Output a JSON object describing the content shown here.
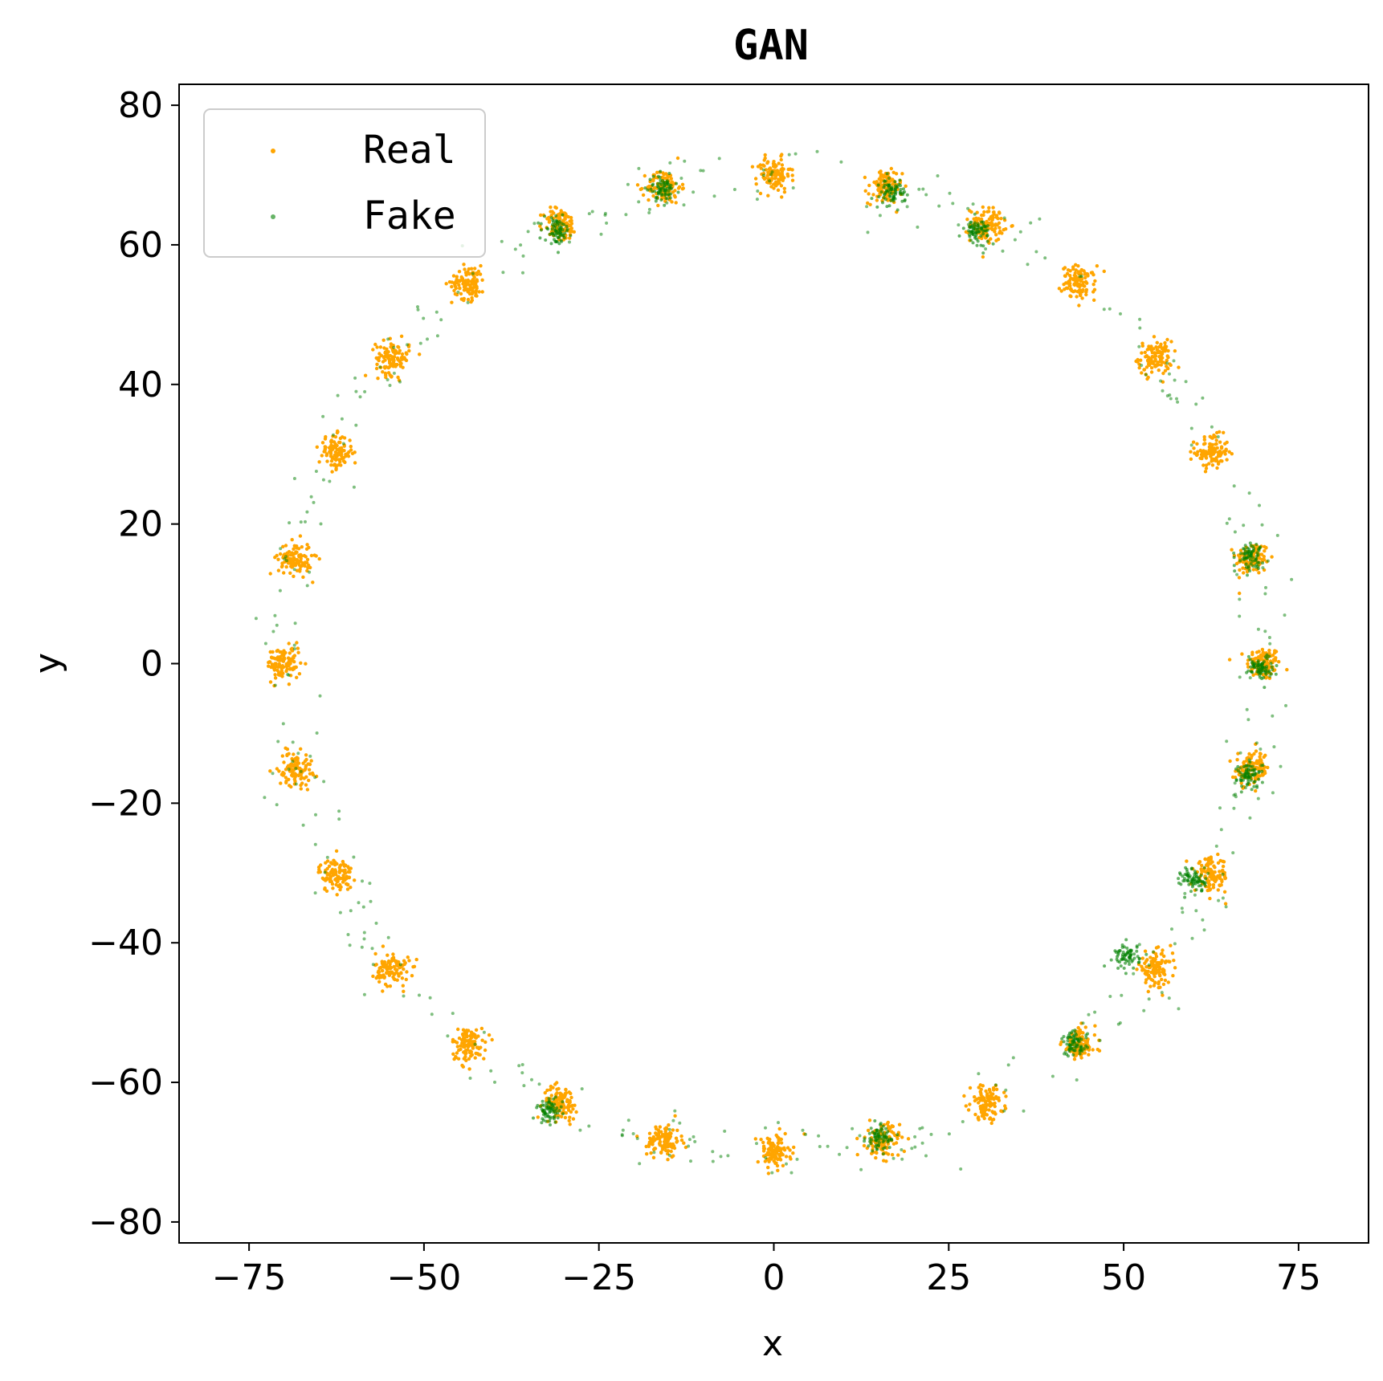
{
  "chart_data": {
    "type": "scatter",
    "title": "GAN",
    "xlabel": "x",
    "ylabel": "y",
    "xlim": [
      -85,
      85
    ],
    "ylim": [
      -83,
      83
    ],
    "xticks": [
      -75,
      -50,
      -25,
      0,
      25,
      50,
      75
    ],
    "yticks": [
      -80,
      -60,
      -40,
      -20,
      0,
      20,
      40,
      60,
      80
    ],
    "xtick_labels": [
      "−75",
      "−50",
      "−25",
      "0",
      "25",
      "50",
      "75"
    ],
    "ytick_labels": [
      "−80",
      "−60",
      "−40",
      "−20",
      "0",
      "20",
      "40",
      "60",
      "80"
    ],
    "grid": false,
    "legend_position": "upper-left",
    "series": [
      {
        "name": "Real",
        "color": "#FFA500",
        "cluster_centers": [
          [
            70,
            0
          ],
          [
            68.4,
            15.1
          ],
          [
            62.6,
            30.3
          ],
          [
            54.5,
            43.8
          ],
          [
            43.6,
            54.6
          ],
          [
            30.5,
            62.9
          ],
          [
            15.9,
            68.3
          ],
          [
            0,
            70
          ],
          [
            -15.7,
            68.3
          ],
          [
            -30.5,
            62.9
          ],
          [
            -43.6,
            54.6
          ],
          [
            -54.5,
            43.8
          ],
          [
            -62.6,
            30.3
          ],
          [
            -68.4,
            15.1
          ],
          [
            -70,
            0
          ],
          [
            -68.4,
            -15.1
          ],
          [
            -62.6,
            -30.3
          ],
          [
            -54.5,
            -43.8
          ],
          [
            -43.6,
            -54.6
          ],
          [
            -30.5,
            -62.9
          ],
          [
            -15.7,
            -68.3
          ],
          [
            0,
            -70
          ],
          [
            15.6,
            -68.3
          ],
          [
            30.5,
            -62.9
          ],
          [
            43.6,
            -54.6
          ],
          [
            54.5,
            -43.8
          ],
          [
            62.6,
            -30.3
          ],
          [
            68.4,
            -15.1
          ]
        ],
        "cluster_spread": 1.2
      },
      {
        "name": "Fake",
        "color": "#008000",
        "cluster_centers": [
          [
            -31,
            62
          ],
          [
            -16,
            68
          ],
          [
            17,
            67.5
          ],
          [
            29,
            62
          ],
          [
            68,
            15.5
          ],
          [
            69.5,
            -0.5
          ],
          [
            68,
            -16
          ],
          [
            60,
            -31
          ],
          [
            50.5,
            -42
          ],
          [
            43,
            -54.5
          ],
          [
            -32,
            -64
          ],
          [
            15,
            -68
          ]
        ]
      }
    ]
  }
}
